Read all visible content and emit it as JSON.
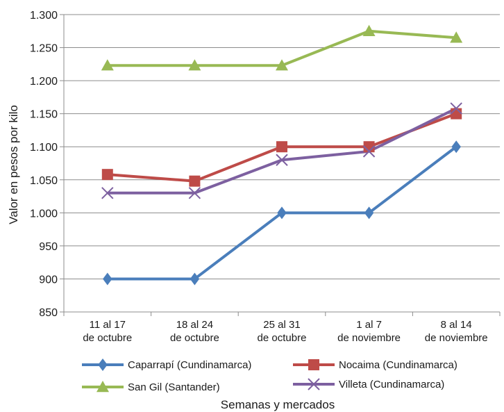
{
  "chart_data": {
    "type": "line",
    "title": "",
    "xlabel": "Semanas y mercados",
    "ylabel": "Valor en pesos por kilo",
    "ylim": [
      850,
      1300
    ],
    "yticks": [
      850,
      900,
      950,
      1000,
      1050,
      1100,
      1150,
      1200,
      1250,
      1300
    ],
    "ytick_labels": [
      "850",
      "900",
      "950",
      "1.000",
      "1.050",
      "1.100",
      "1.150",
      "1.200",
      "1.250",
      "1.300"
    ],
    "grid": "horizontal",
    "legend_position": "bottom",
    "categories": [
      [
        "11 al 17",
        "de octubre"
      ],
      [
        "18 al 24",
        "de octubre"
      ],
      [
        "25 al 31",
        "de octubre"
      ],
      [
        "1 al 7",
        "de noviembre"
      ],
      [
        "8 al 14",
        "de noviembre"
      ]
    ],
    "series": [
      {
        "name": "Caparrapí (Cundinamarca)",
        "values": [
          900,
          900,
          1000,
          1000,
          1100
        ],
        "color": "#4a7ebb",
        "marker": "diamond"
      },
      {
        "name": "Nocaima (Cundinamarca)",
        "values": [
          1058,
          1048,
          1100,
          1100,
          1150
        ],
        "color": "#be4b48",
        "marker": "square"
      },
      {
        "name": "San Gil (Santander)",
        "values": [
          1223,
          1223,
          1223,
          1275,
          1265
        ],
        "color": "#98b954",
        "marker": "triangle"
      },
      {
        "name": "Villeta (Cundinamarca)",
        "values": [
          1030,
          1030,
          1080,
          1093,
          1158
        ],
        "color": "#7d60a0",
        "marker": "x"
      }
    ]
  }
}
